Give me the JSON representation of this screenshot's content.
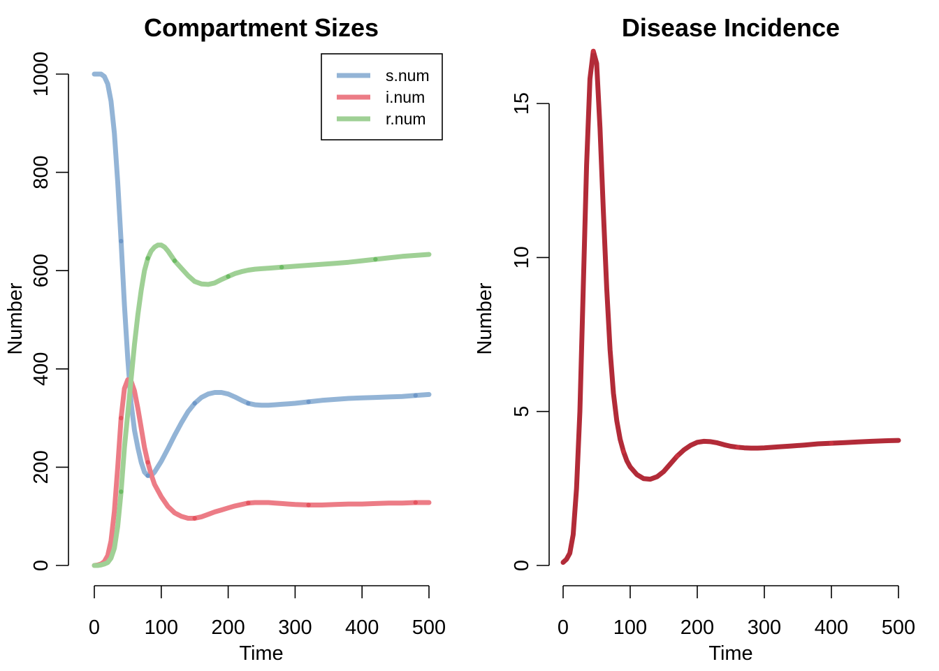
{
  "chart_data": [
    {
      "type": "line",
      "title": "Compartment Sizes",
      "xlabel": "Time",
      "ylabel": "Number",
      "xlim": [
        0,
        500
      ],
      "ylim": [
        0,
        1000
      ],
      "xticks": [
        0,
        100,
        200,
        300,
        400,
        500
      ],
      "yticks": [
        0,
        200,
        400,
        600,
        800,
        1000
      ],
      "grid": false,
      "legend": {
        "position": "top-right",
        "entries": [
          "s.num",
          "i.num",
          "r.num"
        ]
      },
      "series": [
        {
          "name": "s.num",
          "color": "#93b4d6",
          "marker_color": "#6f98c8",
          "x": [
            0,
            5,
            10,
            15,
            20,
            25,
            30,
            35,
            40,
            45,
            50,
            55,
            60,
            65,
            70,
            75,
            80,
            85,
            90,
            100,
            110,
            120,
            130,
            140,
            150,
            160,
            170,
            180,
            190,
            200,
            210,
            220,
            230,
            240,
            250,
            260,
            270,
            280,
            290,
            300,
            320,
            340,
            360,
            380,
            400,
            420,
            440,
            460,
            480,
            500
          ],
          "y": [
            1000,
            1000,
            1000,
            995,
            980,
            945,
            880,
            780,
            660,
            530,
            420,
            330,
            275,
            240,
            210,
            190,
            183,
            183,
            190,
            212,
            238,
            265,
            290,
            313,
            330,
            342,
            349,
            352,
            352,
            349,
            343,
            336,
            330,
            327,
            326,
            326,
            327,
            328,
            329,
            330,
            333,
            336,
            338,
            340,
            341,
            342,
            343,
            344,
            346,
            348
          ]
        },
        {
          "name": "i.num",
          "color": "#ec7c86",
          "marker_color": "#e5545f",
          "x": [
            0,
            5,
            10,
            15,
            20,
            25,
            30,
            35,
            40,
            45,
            50,
            55,
            60,
            65,
            70,
            75,
            80,
            85,
            90,
            100,
            110,
            120,
            130,
            140,
            150,
            160,
            170,
            180,
            190,
            200,
            210,
            220,
            230,
            240,
            250,
            260,
            270,
            280,
            290,
            300,
            320,
            340,
            360,
            380,
            400,
            420,
            440,
            460,
            480,
            500
          ],
          "y": [
            0,
            1,
            3,
            8,
            20,
            50,
            110,
            200,
            300,
            360,
            378,
            375,
            355,
            320,
            280,
            240,
            210,
            185,
            165,
            140,
            120,
            107,
            100,
            96,
            96,
            99,
            104,
            109,
            113,
            117,
            121,
            124,
            127,
            128,
            128,
            128,
            127,
            126,
            125,
            124,
            123,
            123,
            124,
            125,
            125,
            126,
            127,
            127,
            128,
            128
          ]
        },
        {
          "name": "r.num",
          "color": "#9fd095",
          "marker_color": "#6cbb63",
          "x": [
            0,
            5,
            10,
            15,
            20,
            25,
            30,
            35,
            40,
            45,
            50,
            55,
            60,
            65,
            70,
            75,
            80,
            85,
            90,
            95,
            100,
            105,
            110,
            115,
            120,
            130,
            140,
            150,
            160,
            170,
            180,
            190,
            200,
            210,
            220,
            230,
            240,
            250,
            260,
            270,
            280,
            290,
            300,
            320,
            340,
            360,
            380,
            400,
            420,
            440,
            460,
            480,
            500
          ],
          "y": [
            0,
            0,
            1,
            3,
            6,
            15,
            35,
            80,
            150,
            240,
            310,
            380,
            450,
            510,
            560,
            600,
            625,
            640,
            648,
            652,
            652,
            648,
            640,
            630,
            620,
            605,
            590,
            578,
            573,
            572,
            575,
            582,
            588,
            594,
            598,
            601,
            603,
            604,
            605,
            606,
            607,
            608,
            609,
            611,
            613,
            615,
            617,
            620,
            623,
            626,
            629,
            631,
            633
          ]
        }
      ]
    },
    {
      "type": "line",
      "title": "Disease Incidence",
      "xlabel": "Time",
      "ylabel": "Number",
      "xlim": [
        0,
        500
      ],
      "ylim": [
        0,
        17
      ],
      "xticks": [
        0,
        100,
        200,
        300,
        400,
        500
      ],
      "yticks": [
        0,
        5,
        10,
        15
      ],
      "grid": false,
      "series": [
        {
          "color": "#b22b38",
          "marker_color": "#c9323f",
          "x": [
            0,
            5,
            10,
            15,
            20,
            25,
            30,
            35,
            40,
            45,
            50,
            55,
            60,
            65,
            70,
            75,
            80,
            85,
            90,
            95,
            100,
            110,
            120,
            130,
            140,
            150,
            160,
            170,
            180,
            190,
            200,
            210,
            220,
            230,
            240,
            250,
            260,
            270,
            280,
            290,
            300,
            320,
            340,
            360,
            380,
            400,
            420,
            440,
            460,
            480,
            500
          ],
          "y": [
            0.1,
            0.2,
            0.4,
            1,
            2.5,
            5,
            9,
            13,
            15.8,
            16.7,
            16.3,
            14.2,
            11.5,
            9.0,
            7.0,
            5.6,
            4.7,
            4.1,
            3.7,
            3.4,
            3.2,
            2.95,
            2.82,
            2.8,
            2.88,
            3.05,
            3.3,
            3.55,
            3.75,
            3.9,
            4.0,
            4.03,
            4.02,
            3.98,
            3.92,
            3.87,
            3.84,
            3.82,
            3.81,
            3.81,
            3.82,
            3.85,
            3.88,
            3.91,
            3.95,
            3.97,
            3.99,
            4.01,
            4.03,
            4.05,
            4.06
          ]
        }
      ]
    }
  ]
}
